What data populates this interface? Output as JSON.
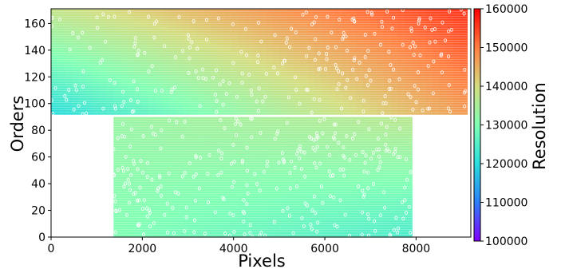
{
  "chart_data": {
    "type": "heatmap",
    "xlabel": "Pixels",
    "ylabel": "Orders",
    "colorbar_label": "Resolution",
    "xlim": [
      0,
      9200
    ],
    "ylim": [
      0,
      171
    ],
    "x_ticks": [
      0,
      2000,
      4000,
      6000,
      8000
    ],
    "y_ticks": [
      0,
      20,
      40,
      60,
      80,
      100,
      120,
      140,
      160
    ],
    "colorbar_range": [
      100000,
      160000
    ],
    "colorbar_ticks": [
      100000,
      110000,
      120000,
      130000,
      140000,
      150000,
      160000
    ],
    "colormap": "rainbow",
    "regions": [
      {
        "name": "upper",
        "orders": [
          92,
          171
        ],
        "pixels": [
          0,
          9120
        ]
      },
      {
        "name": "lower",
        "orders": [
          0,
          90
        ],
        "pixels": [
          1370,
          7910
        ]
      }
    ],
    "resolution_corners": {
      "upper": {
        "pixel_0_order_92": 120000,
        "pixel_9120_order_92": 147000,
        "pixel_0_order_171": 138000,
        "pixel_9120_order_171": 156000
      },
      "lower": {
        "pixel_1370_order_0": 130000,
        "pixel_7910_order_0": 124000,
        "pixel_1370_order_90": 133000,
        "pixel_7910_order_90": 137000
      }
    },
    "markers": "small open circles scattered over both regions (individual fitted lines)",
    "grid": false
  },
  "colors": {
    "colormap_stops": [
      "#8000ff",
      "#2c7ef7",
      "#2adddd",
      "#80ffb4",
      "#d4dd80",
      "#ff7f41",
      "#ff0000"
    ]
  }
}
